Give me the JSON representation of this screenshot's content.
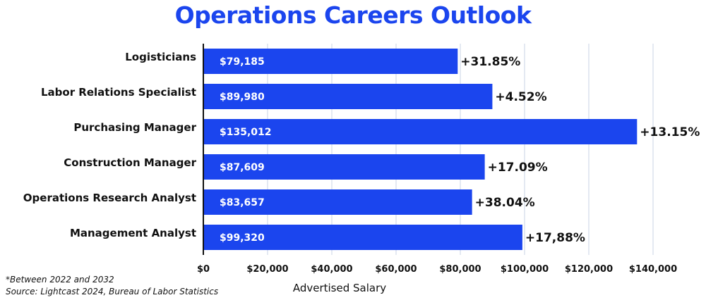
{
  "colors": {
    "bar": "#1b45ee",
    "title": "#1b45ee",
    "gridline": "#c9d3e6",
    "axis": "#111111",
    "text": "#111111",
    "bar_label": "#ffffff"
  },
  "chart_data": {
    "type": "bar",
    "orientation": "horizontal",
    "title": "Operations Careers Outlook",
    "xlabel": "Advertised Salary",
    "ylabel": "",
    "categories": [
      "Logisticians",
      "Labor Relations Specialist",
      "Purchasing Manager",
      "Construction Manager",
      "Operations Research Analyst",
      "Management Analyst"
    ],
    "values": [
      79185,
      89980,
      135012,
      87609,
      83657,
      99320
    ],
    "value_labels": [
      "$79,185",
      "$89,980",
      "$135,012",
      "$87,609",
      "$83,657",
      "$99,320"
    ],
    "annotations": [
      "+31.85%",
      "+4.52%",
      "+13.15%",
      "+17.09%",
      "+38.04%",
      "+17,88%"
    ],
    "x_ticks": [
      0,
      20000,
      40000,
      60000,
      80000,
      100000,
      120000,
      140000
    ],
    "x_tick_labels": [
      "$0",
      "$20,000",
      "$40,000",
      "$60,000",
      "$80,000",
      "$100,000",
      "$120,000",
      "$140,000"
    ],
    "xlim": [
      0,
      140000
    ],
    "grid": "vertical",
    "legend": "none"
  },
  "footnotes": {
    "note": "*Between 2022 and 2032",
    "source": "Source: Lightcast 2024, Bureau of Labor Statistics"
  }
}
